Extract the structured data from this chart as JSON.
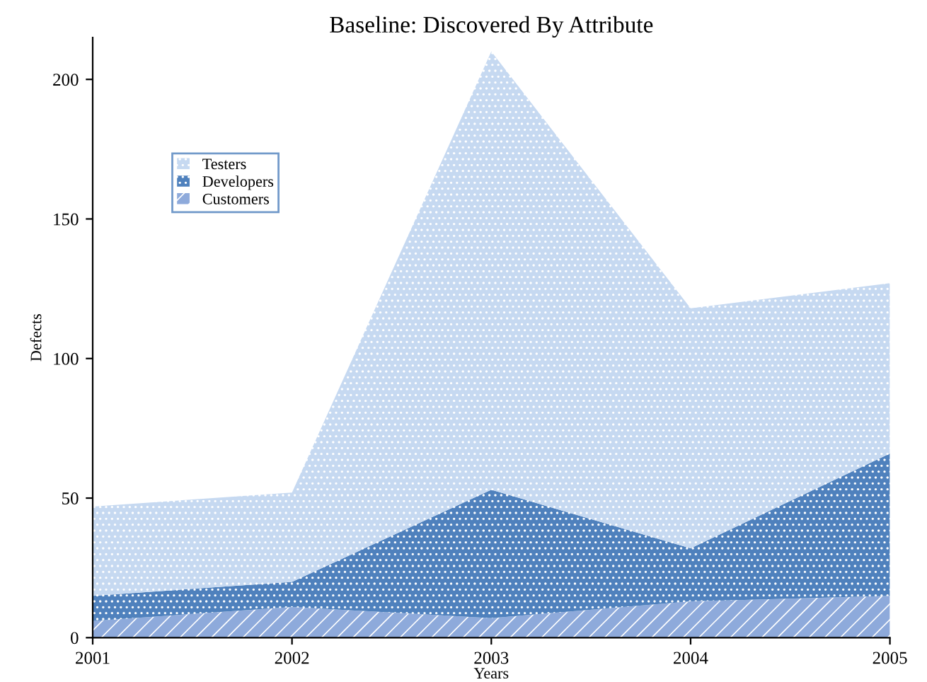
{
  "chart_data": {
    "type": "area",
    "stacked": true,
    "title": "Baseline: Discovered By Attribute",
    "xlabel": "Years",
    "ylabel": "Defects",
    "x": [
      2001,
      2002,
      2003,
      2004,
      2005
    ],
    "xlim": [
      2001,
      2005
    ],
    "xticks": [
      2001,
      2002,
      2003,
      2004,
      2005
    ],
    "ylim": [
      0,
      215
    ],
    "yticks": [
      0,
      50,
      100,
      150,
      200
    ],
    "grid": false,
    "legend": "top left",
    "series": [
      {
        "name": "Customers",
        "color": "#8eaadb",
        "values": [
          6,
          11,
          7,
          13,
          15
        ]
      },
      {
        "name": "Developers",
        "color": "#4f81bd",
        "values": [
          9,
          9,
          46,
          19,
          51
        ]
      },
      {
        "name": "Testers",
        "color": "#c6d9f1",
        "values": [
          32,
          32,
          157,
          86,
          61
        ]
      }
    ]
  }
}
